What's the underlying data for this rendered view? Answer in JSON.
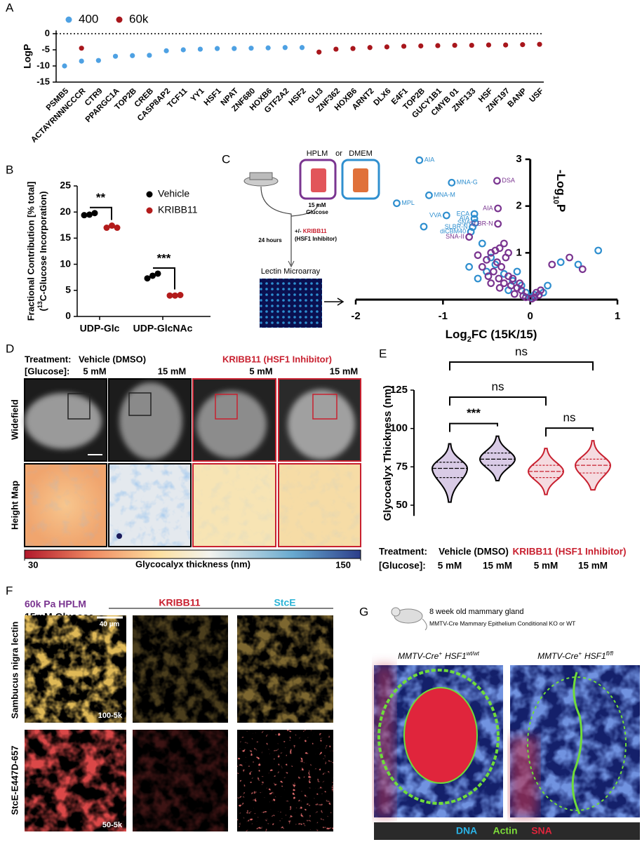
{
  "panel_letters": [
    "A",
    "B",
    "C",
    "D",
    "E",
    "F",
    "G"
  ],
  "chart_data": [
    {
      "type": "dot",
      "ylabel": "LogP",
      "zero_line": true,
      "categories": [
        "PSMB5",
        "ACTAYRNNNCCCR",
        "CTR9",
        "PPARGC1A",
        "TOP2B",
        "CREB",
        "CASP8AP2",
        "TCF11",
        "YY1",
        "HSF1",
        "NPAT",
        "ZNF680",
        "HOXB6",
        "GTF2A2",
        "HSF2",
        "GLI3",
        "ZNF362",
        "HOXB6",
        "ARNT2",
        "DLX6",
        "E4F1",
        "TOP2B",
        "GUCY1B1",
        "CMYB 01",
        "ZNF133",
        "HSF",
        "ZNF197",
        "BANP",
        "USF"
      ],
      "series": [
        {
          "name": "400",
          "color": "#4ea1e3",
          "values": [
            -10,
            -8.5,
            -8.3,
            -7,
            -6.8,
            -6.7,
            -5.3,
            -5,
            -4.8,
            -4.6,
            -4.6,
            -4.5,
            -4.4,
            -4.3,
            -4.3,
            null,
            null,
            null,
            null,
            null,
            null,
            null,
            null,
            null,
            null,
            null,
            null,
            null,
            null
          ]
        },
        {
          "name": "60k",
          "color": "#a8161c",
          "values": [
            null,
            -4.5,
            null,
            null,
            null,
            null,
            null,
            null,
            null,
            null,
            null,
            null,
            null,
            null,
            null,
            -5.7,
            -4.8,
            -4.6,
            -4.3,
            -4.1,
            -3.9,
            -3.8,
            -3.7,
            -3.6,
            -3.6,
            -3.5,
            -3.5,
            -3.4,
            -3.3
          ]
        }
      ],
      "ylim": [
        -15,
        1
      ],
      "yticks": [
        0,
        -5,
        -10,
        -15
      ]
    },
    {
      "type": "dot_strip",
      "ylabel": "Fractional Contribution [% total]",
      "ylabel2": [
        "(",
        "13",
        "C-Glucose Incorporation)"
      ],
      "categories": [
        "UDP-Glc",
        "UDP-GlcNAc"
      ],
      "series": [
        {
          "name": "Vehicle",
          "color": "#000000",
          "values": [
            [
              19.4,
              19.5,
              19.8
            ],
            [
              7.3,
              7.8,
              8.2
            ]
          ]
        },
        {
          "name": "KRIBB11",
          "color": "#b31b1b",
          "values": [
            [
              17.0,
              17.4,
              17.0
            ],
            [
              4.0,
              4.0,
              4.1
            ]
          ]
        }
      ],
      "ylim": [
        0,
        25
      ],
      "yticks": [
        0,
        5,
        10,
        15,
        20,
        25
      ],
      "annotations": [
        "**",
        "***"
      ]
    },
    {
      "type": "volcano",
      "xlabel": [
        "Log",
        "2",
        "FC (15K/15)"
      ],
      "ylabel": [
        "-Log",
        "10",
        "P"
      ],
      "xlim": [
        -2,
        1
      ],
      "ylim": [
        0,
        3
      ],
      "xticks": [
        -2,
        -1,
        0,
        1
      ],
      "yticks": [
        1,
        2,
        3
      ],
      "series": [
        {
          "color": "#2f8fcf",
          "x": [
            -1.27,
            -0.9,
            -1.16,
            -1.53,
            -0.64,
            -0.64,
            -0.63,
            -0.96,
            -0.66,
            -0.68,
            -1.22,
            -0.55,
            -0.45,
            -0.4,
            -0.5,
            -0.3,
            -0.2,
            -0.1,
            -0.05,
            0.05,
            0.15,
            0.2,
            0.35,
            0.55,
            0.78,
            -0.6,
            -0.25,
            0.0,
            -0.7,
            -0.15
          ],
          "y": [
            2.98,
            2.5,
            2.23,
            2.06,
            1.83,
            1.73,
            1.64,
            1.8,
            1.55,
            1.45,
            1.56,
            1.2,
            0.9,
            0.75,
            0.6,
            0.55,
            0.4,
            0.3,
            0.15,
            0.1,
            0.15,
            0.3,
            0.8,
            0.75,
            1.05,
            0.45,
            0.2,
            0.05,
            0.7,
            0.6
          ],
          "labels": [
            "AIA",
            "MNA-G",
            "MNA-M",
            "MPL",
            "ECA",
            "AIA",
            "SNA",
            "VVA",
            "SLBR-N",
            "diCBM40",
            null,
            null,
            null,
            null,
            null,
            null,
            null,
            null,
            null,
            null,
            null,
            null,
            null,
            null,
            null,
            null,
            null,
            null,
            null,
            null
          ]
        },
        {
          "color": "#7a3590",
          "x": [
            -0.38,
            -0.37,
            -0.37,
            -0.7,
            -0.4,
            -0.35,
            -0.3,
            -0.45,
            -0.5,
            -0.38,
            -0.28,
            -0.33,
            -0.42,
            -0.48,
            -0.36,
            -0.25,
            -0.2,
            -0.3,
            -0.22,
            -0.15,
            -0.1,
            -0.18,
            -0.08,
            -0.05,
            0.02,
            0.05,
            0.1,
            0.12,
            0.25,
            0.45,
            0.6,
            -0.55,
            -0.6,
            -0.35,
            -0.45,
            -0.25,
            -0.12,
            0.07
          ],
          "y": [
            2.54,
            1.95,
            1.62,
            1.34,
            1.05,
            1.1,
            1.2,
            1.0,
            0.85,
            0.8,
            0.9,
            0.7,
            0.6,
            0.5,
            0.45,
            0.5,
            0.45,
            0.35,
            0.3,
            0.25,
            0.2,
            0.12,
            0.08,
            0.05,
            0.02,
            0.05,
            0.1,
            0.2,
            0.75,
            0.9,
            0.65,
            0.7,
            0.95,
            0.25,
            0.35,
            1.0,
            0.35,
            0.15
          ],
          "labels": [
            "DSA",
            "AIA",
            "SLBR-N",
            "SNA-II",
            null,
            null,
            null,
            null,
            null,
            null,
            null,
            null,
            null,
            null,
            null,
            null,
            null,
            null,
            null,
            null,
            null,
            null,
            null,
            null,
            null,
            null,
            null,
            null,
            null,
            null,
            null,
            null,
            null,
            null,
            null,
            null,
            null,
            null
          ]
        }
      ]
    },
    {
      "type": "violin",
      "ylabel": "Glycocalyx Thickness (nm)",
      "row_labels": [
        "Treatment:",
        "[Glucose]:"
      ],
      "categories": [
        "5 mM",
        "15 mM",
        "5 mM",
        "15 mM"
      ],
      "series": [
        {
          "name": "Vehicle (DMSO)",
          "color": "#000000",
          "fill": "#d9cbe6",
          "min": [
            52,
            66,
            null,
            null
          ],
          "q1": [
            68,
            76,
            null,
            null
          ],
          "median": [
            74,
            80,
            null,
            null
          ],
          "q3": [
            78,
            84,
            null,
            null
          ],
          "max": [
            90,
            95,
            null,
            null
          ]
        },
        {
          "name": "KRIBB11 (HSF1 Inhibitor)",
          "color": "#c8202f",
          "fill": "#f5dbe0",
          "min": [
            null,
            null,
            57,
            60
          ],
          "q1": [
            null,
            null,
            68,
            71
          ],
          "median": [
            null,
            null,
            72,
            76
          ],
          "q3": [
            null,
            null,
            76,
            80
          ],
          "max": [
            null,
            null,
            87,
            92
          ]
        }
      ],
      "ylim": [
        43,
        125
      ],
      "yticks": [
        50,
        75,
        100,
        125
      ],
      "annotations": [
        "***",
        "ns",
        "ns",
        "ns"
      ]
    }
  ],
  "schematic_c": {
    "media": [
      "HPLM",
      "or",
      "DMEM"
    ],
    "glucose": [
      "15 mM",
      "Glucose"
    ],
    "time": "24 hours",
    "treatment": [
      "+/- ",
      "KRIBB11"
    ],
    "inhibitor": "(HSF1 Inhibitor)",
    "array": "Lectin Microarray"
  },
  "panel_d": {
    "row_labels": [
      "Treatment:",
      "[Glucose]:"
    ],
    "treatments": [
      "Vehicle (DMSO)",
      "KRIBB11 (HSF1 Inhibitor)"
    ],
    "glucose": [
      "5 mM",
      "15 mM",
      "5 mM",
      "15 mM"
    ],
    "rows": [
      "Widefield",
      "Height Map"
    ],
    "colorbar": {
      "label": "Glycocalyx thickness (nm)",
      "lim": [
        30,
        150
      ],
      "ticks": [
        30,
        150
      ]
    }
  },
  "panel_f": {
    "header": [
      "60k Pa HPLM",
      "15mM Glucose"
    ],
    "columns": [
      "KRIBB11",
      "StcE"
    ],
    "rows": [
      "Sambucus nigra lectin",
      "StcE-E447D-657"
    ],
    "scale_bar": "40 µm",
    "ranges": [
      "100-5k",
      "50-5k"
    ]
  },
  "panel_g": {
    "caption": [
      "8 week old mammary gland",
      "MMTV-Cre Mammary Epithelium Conditional KO or WT"
    ],
    "titles": [
      [
        "MMTV-Cre",
        "+",
        "HSF1",
        "wt/wt"
      ],
      [
        "MMTV-Cre",
        "+",
        "HSF1",
        "fl/fl"
      ]
    ],
    "channels": [
      "DNA",
      "Actin",
      "SNA"
    ]
  }
}
